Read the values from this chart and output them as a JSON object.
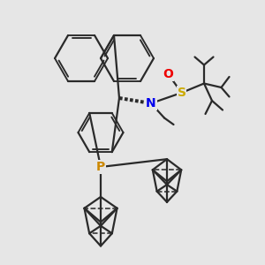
{
  "background_color": "#e6e6e6",
  "line_color": "#2a2a2a",
  "line_width": 1.6,
  "S_color": "#ccaa00",
  "N_color": "#0000ee",
  "O_color": "#ee0000",
  "P_color": "#cc8800",
  "figsize": [
    3.0,
    3.0
  ],
  "dpi": 100,
  "xlim": [
    0,
    10
  ],
  "ylim": [
    0,
    10
  ]
}
